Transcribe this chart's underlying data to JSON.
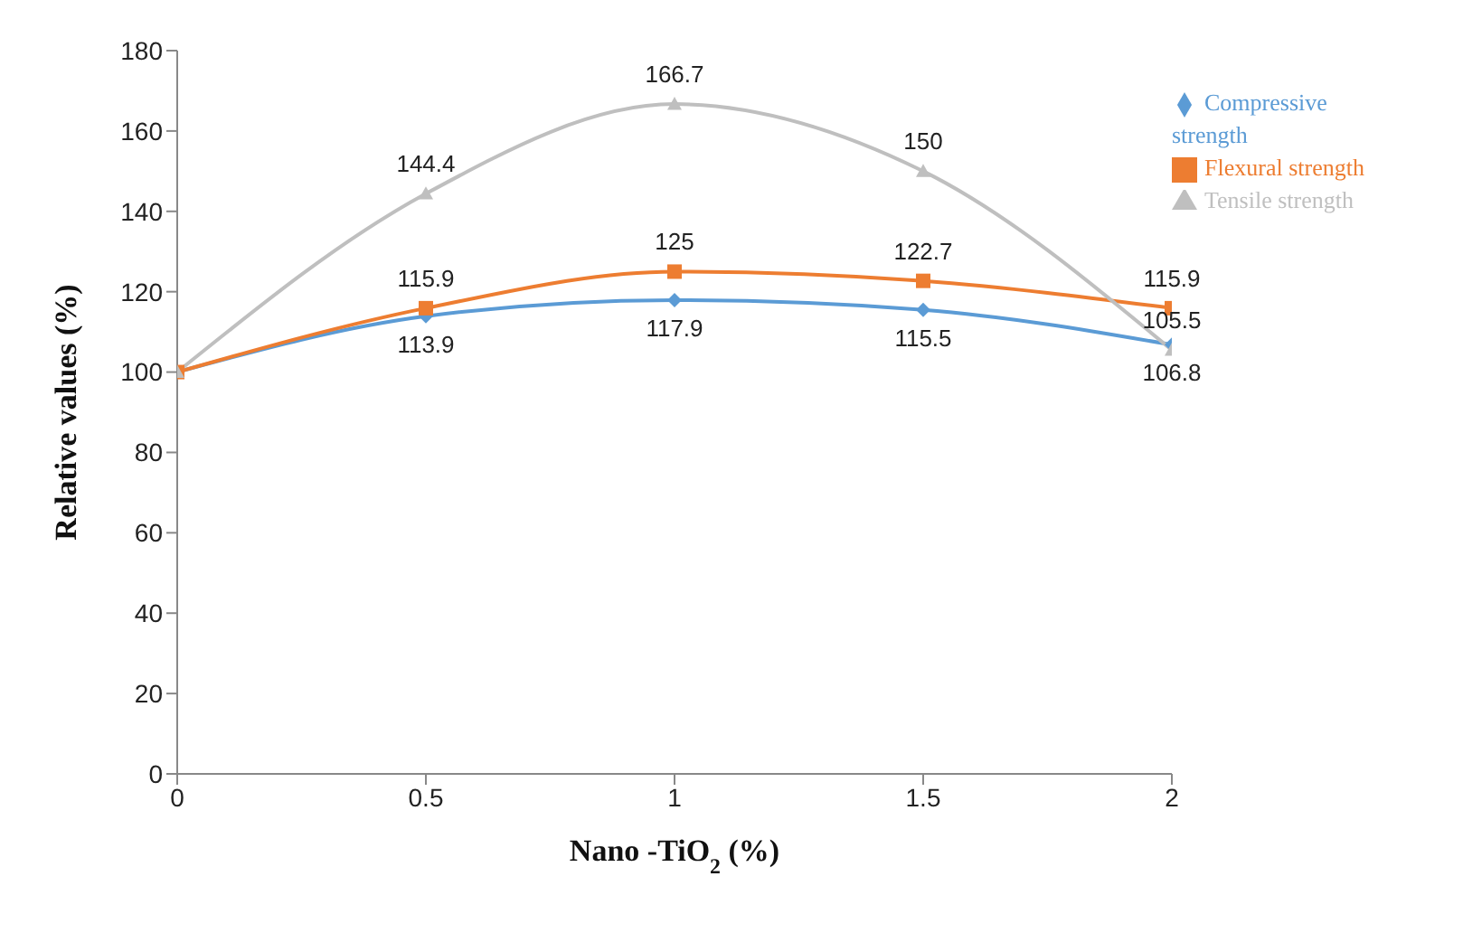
{
  "chart_data": {
    "type": "line",
    "xlabel": "Nano -TiO$_{2}$ (%)",
    "ylabel": "Relative  values (%)",
    "x": [
      0,
      0.5,
      1,
      1.5,
      2
    ],
    "xlim": [
      0,
      2
    ],
    "xticks": [
      0,
      0.5,
      1,
      1.5,
      2
    ],
    "ylim": [
      0,
      180
    ],
    "yticks": [
      0,
      20,
      40,
      60,
      80,
      100,
      120,
      140,
      160,
      180
    ],
    "grid": false,
    "legend": "right",
    "series": [
      {
        "name": "Compressive strength",
        "color": "#5b9bd5",
        "marker": "diamond",
        "values": [
          100,
          113.9,
          117.9,
          115.5,
          106.8
        ],
        "value_labels": [
          null,
          "113.9",
          "117.9",
          "115.5",
          "106.8"
        ]
      },
      {
        "name": "Flexural strength",
        "color": "#ed7d31",
        "marker": "square",
        "values": [
          100,
          115.9,
          125,
          122.7,
          115.9
        ],
        "value_labels": [
          null,
          "115.9",
          "125",
          "122.7",
          "115.9"
        ]
      },
      {
        "name": "Tensile strength",
        "color": "#bfbfbf",
        "marker": "triangle",
        "values": [
          100,
          144.4,
          166.7,
          150,
          105.5
        ],
        "value_labels": [
          null,
          "144.4",
          "166.7",
          "150",
          "105.5"
        ]
      }
    ]
  }
}
